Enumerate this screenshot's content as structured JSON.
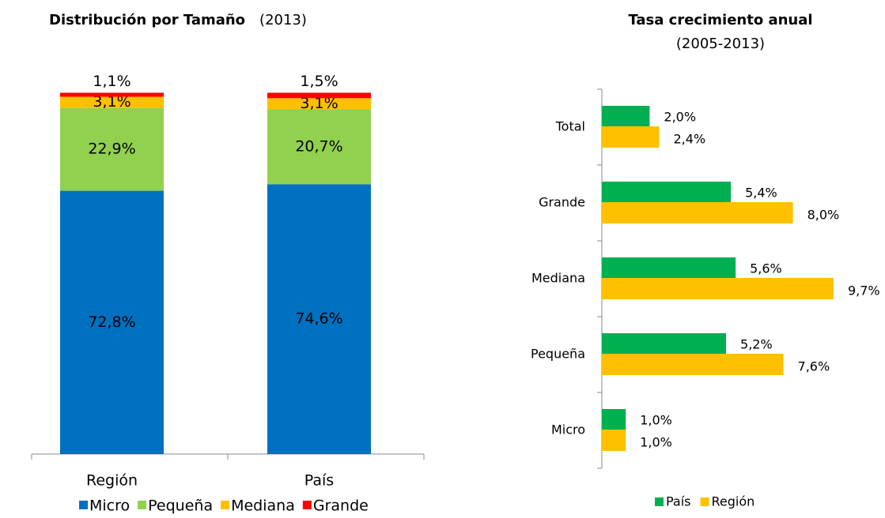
{
  "chart_data": [
    {
      "type": "stacked_bar",
      "title": "Distribución por Tamaño",
      "subtitle": "(2013)",
      "categories": [
        "Región",
        "País"
      ],
      "ylim": [
        0,
        100
      ],
      "series": [
        {
          "name": "Micro",
          "color": "#0070c0",
          "values": [
            72.8,
            74.6
          ],
          "value_labels": [
            "72,8%",
            "74,6%"
          ]
        },
        {
          "name": "Pequeña",
          "color": "#92d050",
          "values": [
            22.9,
            20.7
          ],
          "value_labels": [
            "22,9%",
            "20,7%"
          ]
        },
        {
          "name": "Mediana",
          "color": "#ffc000",
          "values": [
            3.1,
            3.1
          ],
          "value_labels": [
            "3,1%",
            "3,1%"
          ]
        },
        {
          "name": "Grande",
          "color": "#ff0000",
          "values": [
            1.1,
            1.5
          ],
          "value_labels": [
            "1,1%",
            "1,5%"
          ]
        }
      ],
      "legend": "bottom"
    },
    {
      "type": "horizontal_bar",
      "title": "Tasa crecimiento anual",
      "subtitle": "(2005-2013)",
      "categories": [
        "Total",
        "Grande",
        "Mediana",
        "Pequeña",
        "Micro"
      ],
      "xlim": [
        0,
        10
      ],
      "series": [
        {
          "name": "País",
          "color": "#00b050",
          "values": [
            2.0,
            5.4,
            5.6,
            5.2,
            1.0
          ],
          "value_labels": [
            "2,0%",
            "5,4%",
            "5,6%",
            "5,2%",
            "1,0%"
          ]
        },
        {
          "name": "Región",
          "color": "#ffc000",
          "values": [
            2.4,
            8.0,
            9.7,
            7.6,
            1.0
          ],
          "value_labels": [
            "2,4%",
            "8,0%",
            "9,7%",
            "7,6%",
            "1,0%"
          ]
        }
      ],
      "legend": "bottom"
    }
  ]
}
